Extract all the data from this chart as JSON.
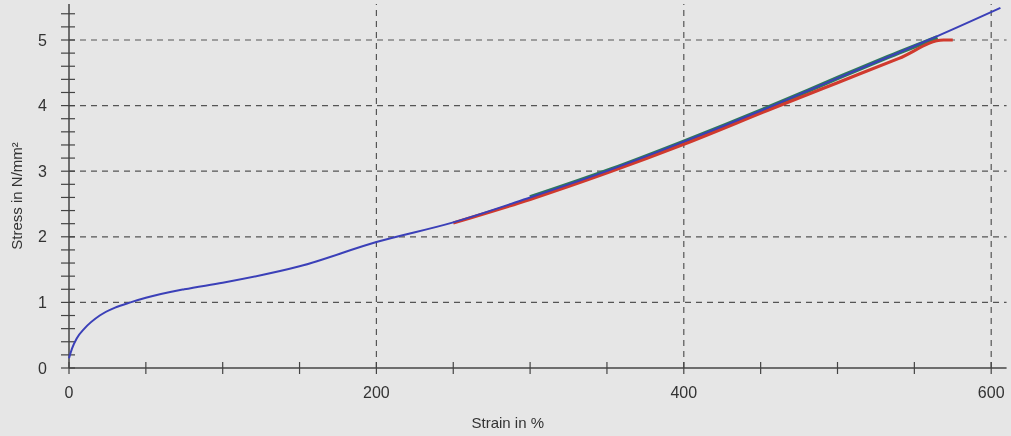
{
  "chart_data": {
    "type": "line",
    "xlabel": "Strain in %",
    "ylabel": "Stress in N/mm²",
    "xlim": [
      0,
      610
    ],
    "ylim": [
      0,
      5.55
    ],
    "xticks": [
      0,
      {
        "value": 50,
        "label": null
      },
      {
        "value": 100,
        "label": null
      },
      {
        "value": 150,
        "label": null
      },
      200,
      {
        "value": 250,
        "label": null
      },
      {
        "value": 300,
        "label": null
      },
      {
        "value": 350,
        "label": null
      },
      400,
      {
        "value": 450,
        "label": null
      },
      {
        "value": 500,
        "label": null
      },
      {
        "value": 550,
        "label": null
      },
      600
    ],
    "yticks": [
      0,
      {
        "value": 0.2,
        "label": null
      },
      {
        "value": 0.4,
        "label": null
      },
      {
        "value": 0.6,
        "label": null
      },
      {
        "value": 0.8,
        "label": null
      },
      1,
      {
        "value": 1.2,
        "label": null
      },
      {
        "value": 1.4,
        "label": null
      },
      {
        "value": 1.6,
        "label": null
      },
      {
        "value": 1.8,
        "label": null
      },
      2,
      {
        "value": 2.2,
        "label": null
      },
      {
        "value": 2.4,
        "label": null
      },
      {
        "value": 2.6,
        "label": null
      },
      {
        "value": 2.8,
        "label": null
      },
      3,
      {
        "value": 3.2,
        "label": null
      },
      {
        "value": 3.4,
        "label": null
      },
      {
        "value": 3.6,
        "label": null
      },
      {
        "value": 3.8,
        "label": null
      },
      4,
      {
        "value": 4.2,
        "label": null
      },
      {
        "value": 4.4,
        "label": null
      },
      {
        "value": 4.6,
        "label": null
      },
      {
        "value": 4.8,
        "label": null
      },
      5,
      {
        "value": 5.2,
        "label": null
      },
      {
        "value": 5.4,
        "label": null
      }
    ],
    "grid": true,
    "line_style": "solid",
    "series": [
      {
        "color": "#2e7a5c",
        "x": [
          300,
          352,
          400,
          458,
          500,
          540,
          565
        ],
        "values": [
          2.6,
          3.02,
          3.45,
          4.0,
          4.42,
          4.81,
          5.04
        ]
      },
      {
        "color": "#d03a2e",
        "x": [
          250,
          300,
          352,
          400,
          458,
          500,
          540,
          569,
          575
        ],
        "values": [
          2.21,
          2.57,
          2.99,
          3.41,
          3.96,
          4.35,
          4.72,
          5.0,
          5.0
        ]
      },
      {
        "color": "#3b40b8",
        "x": [
          0,
          2,
          5,
          10,
          20,
          30,
          40,
          50,
          75,
          100,
          150,
          200,
          250,
          300,
          352,
          400,
          458,
          500,
          540,
          565,
          606
        ],
        "values": [
          0.15,
          0.3,
          0.45,
          0.6,
          0.8,
          0.92,
          1.0,
          1.07,
          1.2,
          1.3,
          1.55,
          1.92,
          2.22,
          2.6,
          3.02,
          3.45,
          4.0,
          4.42,
          4.81,
          5.06,
          5.49
        ]
      }
    ]
  }
}
